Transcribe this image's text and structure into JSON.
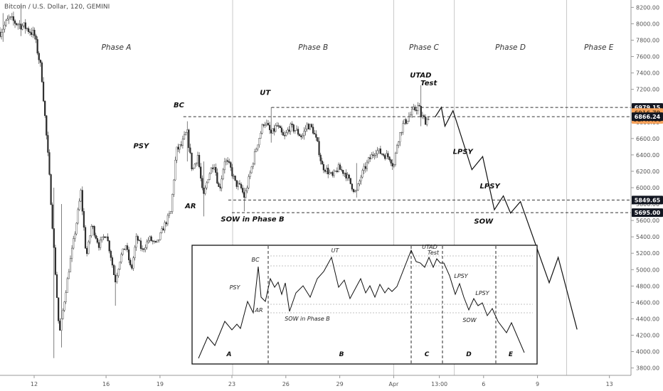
{
  "chart_data": {
    "type": "candlestick",
    "title": "Bitcoin / U.S. Dollar, 120, GEMINI",
    "y_axis": {
      "ticks": [
        8200,
        8000,
        7800,
        7600,
        7400,
        7200,
        7000,
        6800,
        6600,
        6400,
        6200,
        6000,
        5800,
        5600,
        5400,
        5200,
        5000,
        4800,
        4600,
        4400,
        4200,
        4000,
        3800
      ],
      "ylim": [
        3710,
        8290
      ]
    },
    "x_axis": {
      "tick_labels": [
        "12",
        "16",
        "19",
        "23",
        "26",
        "29",
        "Apr",
        "13:00",
        "6",
        "9",
        "13"
      ],
      "tick_days": [
        12,
        16,
        19,
        23,
        26,
        29,
        32,
        34.54,
        37,
        40,
        44
      ],
      "xlim": [
        10.1,
        45.2
      ]
    },
    "phases": [
      {
        "label": "Phase A",
        "start": 10.1,
        "end": 23.04
      },
      {
        "label": "Phase B",
        "start": 23.04,
        "end": 32.0
      },
      {
        "label": "Phase C",
        "start": 32.0,
        "end": 35.37
      },
      {
        "label": "Phase D",
        "start": 35.37,
        "end": 41.62
      },
      {
        "label": "Phase E",
        "start": 41.62,
        "end": 45.2
      }
    ],
    "price_path": [
      [
        10.1,
        7900
      ],
      [
        10.6,
        8060
      ],
      [
        11.0,
        8010
      ],
      [
        11.5,
        7960
      ],
      [
        12.0,
        7870
      ],
      [
        12.4,
        7430
      ],
      [
        12.8,
        6300
      ],
      [
        13.1,
        5250
      ],
      [
        13.4,
        4200
      ],
      [
        13.7,
        4650
      ],
      [
        14.0,
        5100
      ],
      [
        14.3,
        5500
      ],
      [
        14.6,
        5950
      ],
      [
        14.9,
        5150
      ],
      [
        15.2,
        5550
      ],
      [
        15.6,
        5300
      ],
      [
        16.0,
        5450
      ],
      [
        16.3,
        5130
      ],
      [
        16.5,
        4850
      ],
      [
        16.8,
        5150
      ],
      [
        17.1,
        5300
      ],
      [
        17.4,
        4980
      ],
      [
        17.7,
        5400
      ],
      [
        18.0,
        5230
      ],
      [
        18.4,
        5380
      ],
      [
        18.8,
        5300
      ],
      [
        19.2,
        5520
      ],
      [
        19.6,
        5700
      ],
      [
        19.9,
        6450
      ],
      [
        20.2,
        6520
      ],
      [
        20.5,
        6690
      ],
      [
        20.8,
        6200
      ],
      [
        21.1,
        6400
      ],
      [
        21.4,
        5870
      ],
      [
        21.7,
        6150
      ],
      [
        22.0,
        6310
      ],
      [
        22.3,
        5960
      ],
      [
        22.6,
        6340
      ],
      [
        22.9,
        6250
      ],
      [
        23.2,
        6050
      ],
      [
        23.5,
        6000
      ],
      [
        23.7,
        5880
      ],
      [
        24.1,
        6250
      ],
      [
        24.4,
        6530
      ],
      [
        24.8,
        6820
      ],
      [
        25.2,
        6650
      ],
      [
        25.5,
        6760
      ],
      [
        25.9,
        6600
      ],
      [
        26.2,
        6740
      ],
      [
        26.5,
        6710
      ],
      [
        26.9,
        6620
      ],
      [
        27.2,
        6770
      ],
      [
        27.5,
        6710
      ],
      [
        27.8,
        6500
      ],
      [
        28.0,
        6270
      ],
      [
        28.3,
        6210
      ],
      [
        28.6,
        6130
      ],
      [
        28.9,
        6240
      ],
      [
        29.3,
        6180
      ],
      [
        29.6,
        6050
      ],
      [
        29.9,
        5930
      ],
      [
        30.2,
        6150
      ],
      [
        30.6,
        6330
      ],
      [
        31.0,
        6460
      ],
      [
        31.4,
        6410
      ],
      [
        31.8,
        6370
      ],
      [
        32.0,
        6250
      ],
      [
        32.2,
        6560
      ],
      [
        32.5,
        6760
      ],
      [
        32.8,
        6850
      ],
      [
        33.1,
        6940
      ],
      [
        33.4,
        7000
      ],
      [
        33.5,
        6880
      ],
      [
        33.8,
        6810
      ],
      [
        34.0,
        6900
      ]
    ],
    "candle_ranges": [
      [
        10.3,
        8130,
        7780
      ],
      [
        11.3,
        8240,
        7850
      ],
      [
        13.1,
        6000,
        3920
      ],
      [
        13.5,
        5800,
        4050
      ],
      [
        16.5,
        5050,
        4560
      ],
      [
        20.5,
        6810,
        6320
      ],
      [
        21.4,
        6320,
        5650
      ],
      [
        23.7,
        6000,
        5710
      ],
      [
        25.2,
        6980,
        6550
      ],
      [
        29.9,
        6300,
        5880
      ],
      [
        33.5,
        7250,
        6750
      ],
      [
        34.2,
        6990,
        6860
      ]
    ],
    "hypothetical_path": [
      [
        34.3,
        6860
      ],
      [
        34.65,
        6980
      ],
      [
        34.85,
        6750
      ],
      [
        35.3,
        6940
      ],
      [
        36.35,
        6220
      ],
      [
        36.95,
        6380
      ],
      [
        37.6,
        5730
      ],
      [
        38.1,
        5900
      ],
      [
        38.5,
        5690
      ],
      [
        39.05,
        5830
      ],
      [
        40.65,
        4840
      ],
      [
        41.15,
        5150
      ],
      [
        42.2,
        4270
      ]
    ],
    "levels": [
      {
        "label": "6979.15",
        "value": 6979.15,
        "badge": "dark",
        "from_day": 25.2
      },
      {
        "label": "6916.79",
        "value": 6916.79,
        "badge": "orange",
        "from_day": null
      },
      {
        "label": "01:47:00",
        "value": 6833,
        "badge": "orange",
        "from_day": null
      },
      {
        "label": "6866.24",
        "value": 6866.24,
        "badge": "dark",
        "from_day": 20.3
      },
      {
        "label": "5849.65",
        "value": 5849.65,
        "badge": "dark",
        "from_day": 22.8
      },
      {
        "label": "5695.00",
        "value": 5695,
        "badge": "dark",
        "from_day": 23.0
      }
    ],
    "annotations": [
      {
        "text": "PSY",
        "day": 17.95,
        "price": 6480
      },
      {
        "text": "BC",
        "day": 20.05,
        "price": 6980
      },
      {
        "text": "AR",
        "day": 20.7,
        "price": 5750
      },
      {
        "text": "UT",
        "day": 24.85,
        "price": 7130
      },
      {
        "text": "SOW in Phase B",
        "day": 24.15,
        "price": 5590
      },
      {
        "text": "UTAD",
        "day": 33.5,
        "price": 7345
      },
      {
        "text": "Test",
        "day": 33.95,
        "price": 7250
      },
      {
        "text": "LPSY",
        "day": 35.85,
        "price": 6410
      },
      {
        "text": "LPSY",
        "day": 37.35,
        "price": 5990
      },
      {
        "text": "SOW",
        "day": 37.0,
        "price": 5560
      }
    ],
    "inset": {
      "events": [
        "PSY",
        "BC",
        "AR",
        "UT",
        "SOW in Phase B",
        "UTAD",
        "Test",
        "LPSY",
        "LPSY",
        "SOW"
      ],
      "phase_letters": [
        "A",
        "B",
        "C",
        "D",
        "E"
      ]
    }
  }
}
